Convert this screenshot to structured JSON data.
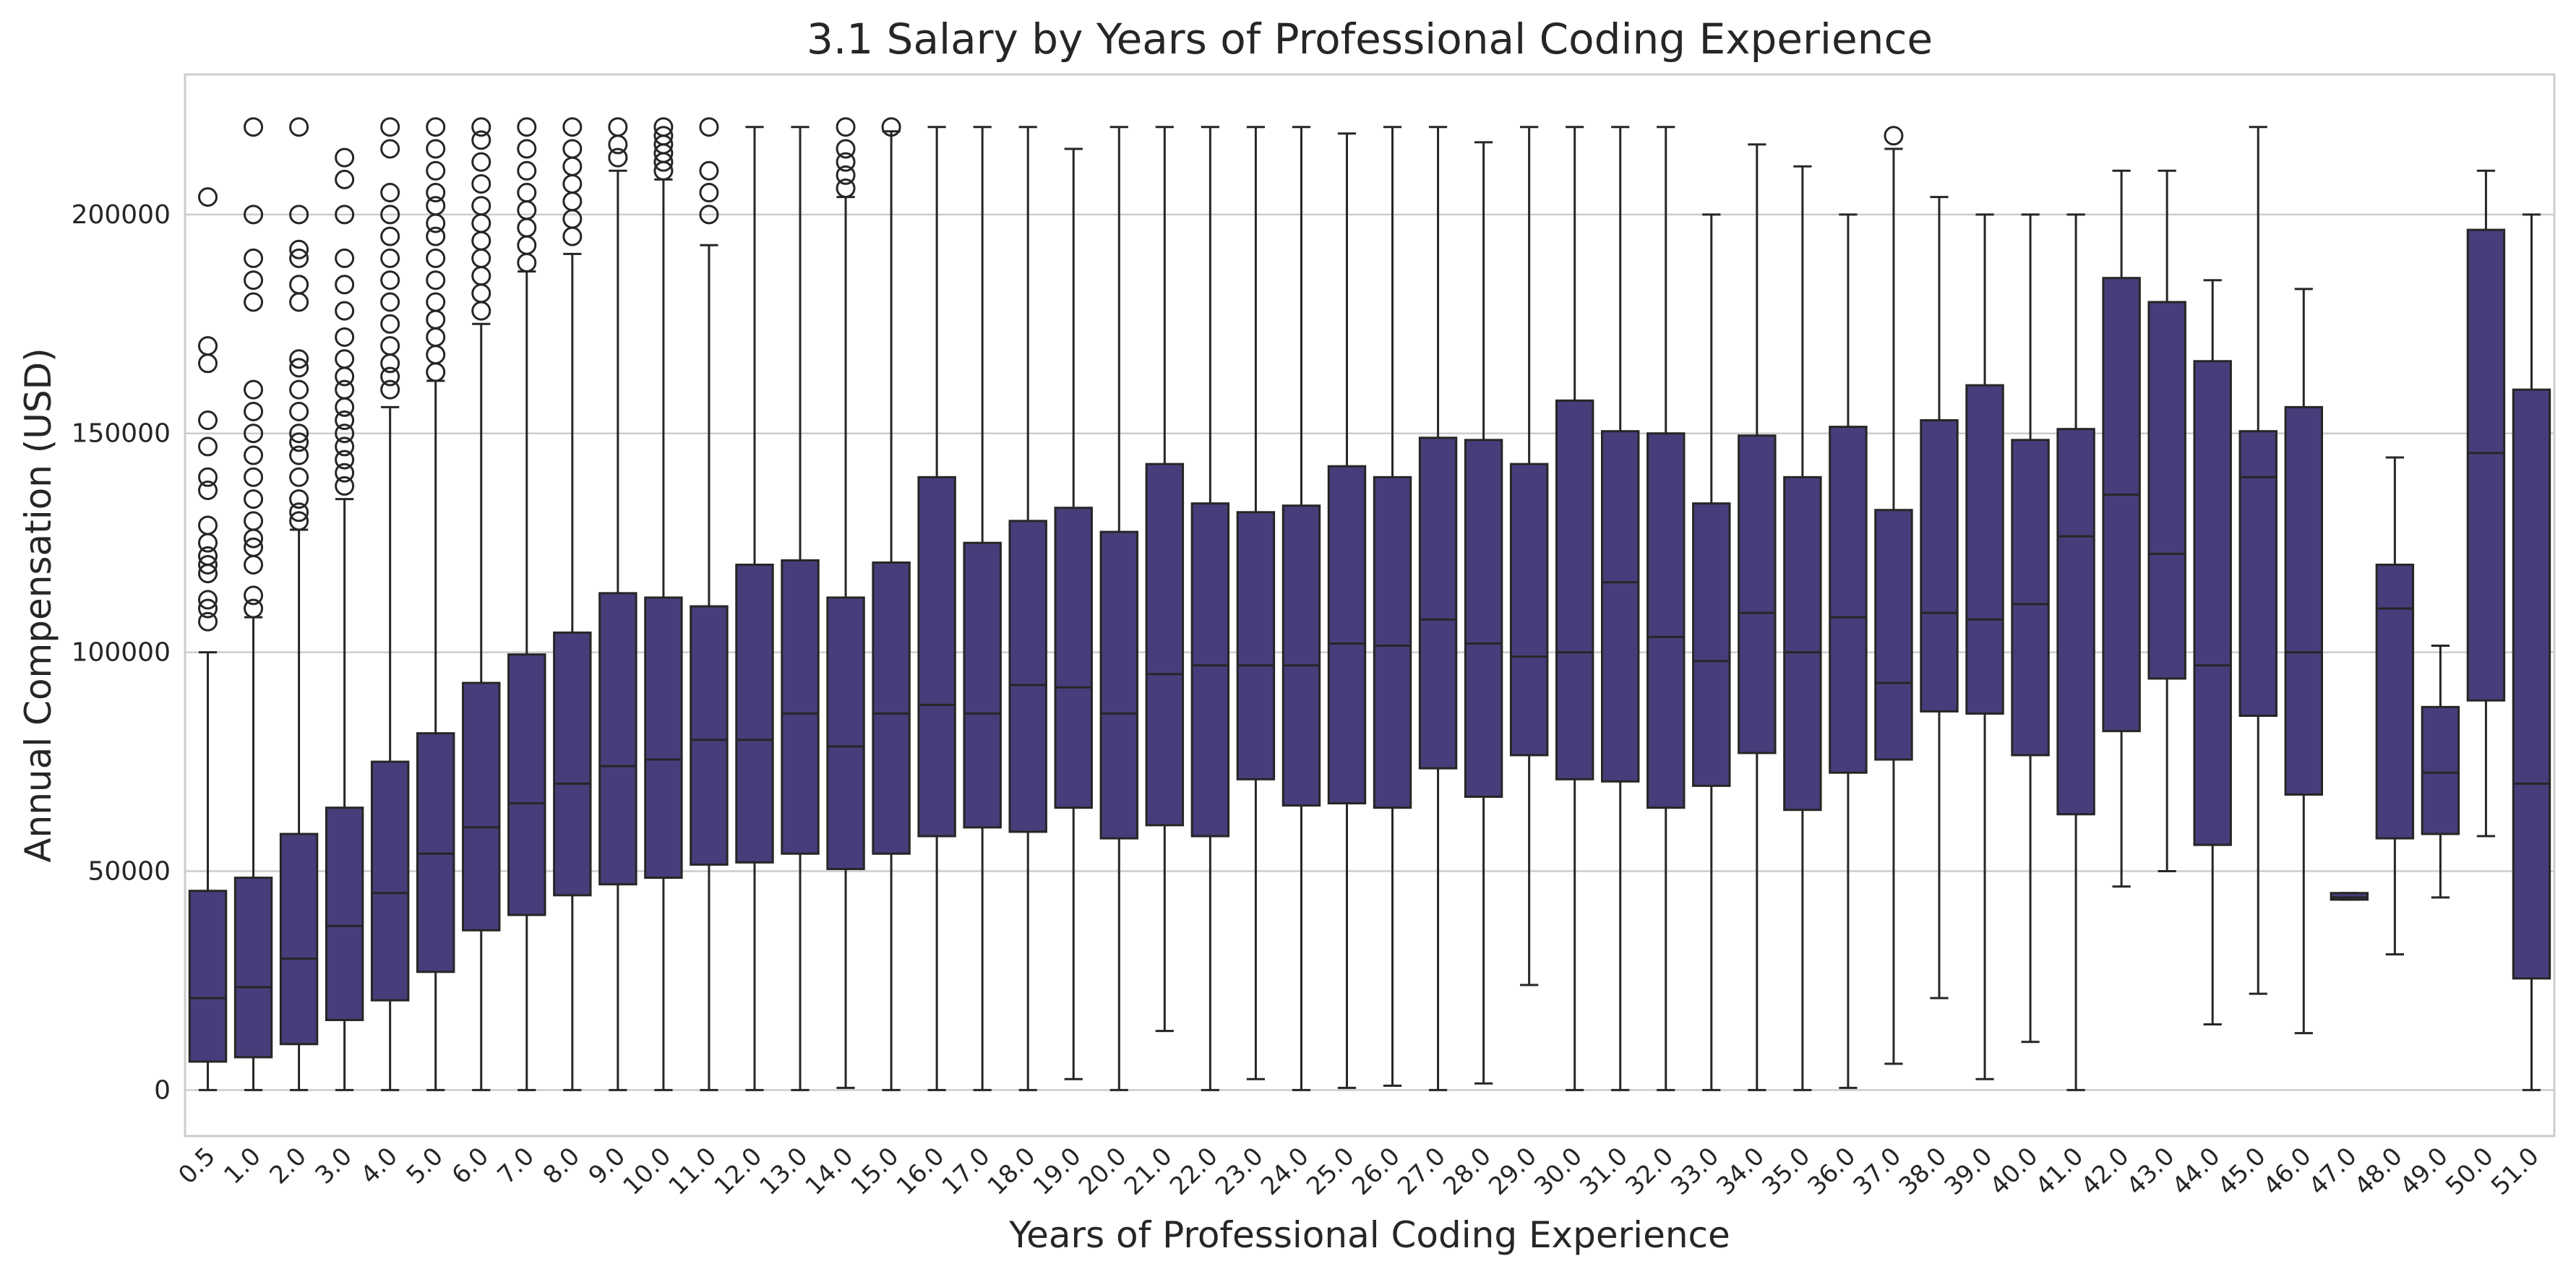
{
  "chart_data": {
    "type": "box",
    "title": "3.1 Salary by Years of Professional Coding Experience",
    "xlabel": "Years of Professional Coding Experience",
    "ylabel": "Annual Compensation (USD)",
    "ylim": [
      -10500,
      232000
    ],
    "yticks": [
      0,
      50000,
      100000,
      150000,
      200000
    ],
    "grid": true,
    "box_color": "#483d7a",
    "line_color": "#262626",
    "categories": [
      "0.5",
      "1.0",
      "2.0",
      "3.0",
      "4.0",
      "5.0",
      "6.0",
      "7.0",
      "8.0",
      "9.0",
      "10.0",
      "11.0",
      "12.0",
      "13.0",
      "14.0",
      "15.0",
      "16.0",
      "17.0",
      "18.0",
      "19.0",
      "20.0",
      "21.0",
      "22.0",
      "23.0",
      "24.0",
      "25.0",
      "26.0",
      "27.0",
      "28.0",
      "29.0",
      "30.0",
      "31.0",
      "32.0",
      "33.0",
      "34.0",
      "35.0",
      "36.0",
      "37.0",
      "38.0",
      "39.0",
      "40.0",
      "41.0",
      "42.0",
      "43.0",
      "44.0",
      "45.0",
      "46.0",
      "47.0",
      "48.0",
      "49.0",
      "50.0",
      "51.0"
    ],
    "boxes": [
      {
        "category": "0.5",
        "whisker_low": 0,
        "q1": 6500,
        "median": 21000,
        "q3": 45500,
        "whisker_high": 100000,
        "outliers": [
          107000,
          110000,
          112000,
          118000,
          120000,
          122000,
          125000,
          129000,
          137000,
          140000,
          147000,
          153000,
          166000,
          170000,
          204000
        ]
      },
      {
        "category": "1.0",
        "whisker_low": 0,
        "q1": 7500,
        "median": 23500,
        "q3": 48500,
        "whisker_high": 108000,
        "outliers": [
          110000,
          113000,
          120000,
          124000,
          126000,
          130000,
          135000,
          140000,
          145000,
          150000,
          155000,
          160000,
          180000,
          185000,
          190000,
          200000,
          220000
        ]
      },
      {
        "category": "2.0",
        "whisker_low": 0,
        "q1": 10500,
        "median": 30000,
        "q3": 58500,
        "whisker_high": 128000,
        "outliers": [
          130000,
          132000,
          135000,
          140000,
          145000,
          148000,
          150000,
          155000,
          160000,
          165000,
          167000,
          180000,
          184000,
          190000,
          192000,
          200000,
          220000
        ]
      },
      {
        "category": "3.0",
        "whisker_low": 0,
        "q1": 16000,
        "median": 37500,
        "q3": 64500,
        "whisker_high": 135000,
        "outliers": [
          138000,
          141000,
          144000,
          147000,
          150000,
          153000,
          156000,
          160000,
          163000,
          167000,
          172000,
          178000,
          184000,
          190000,
          200000,
          208000,
          213000
        ]
      },
      {
        "category": "4.0",
        "whisker_low": 0,
        "q1": 20500,
        "median": 45000,
        "q3": 75000,
        "whisker_high": 156000,
        "outliers": [
          160000,
          163000,
          166000,
          170000,
          175000,
          180000,
          185000,
          190000,
          195000,
          200000,
          205000,
          215000,
          220000
        ]
      },
      {
        "category": "5.0",
        "whisker_low": 0,
        "q1": 27000,
        "median": 54000,
        "q3": 81500,
        "whisker_high": 162000,
        "outliers": [
          164000,
          168000,
          172000,
          176000,
          180000,
          185000,
          190000,
          195000,
          198000,
          202000,
          205000,
          210000,
          215000,
          220000
        ]
      },
      {
        "category": "6.0",
        "whisker_low": 0,
        "q1": 36500,
        "median": 60000,
        "q3": 93000,
        "whisker_high": 175000,
        "outliers": [
          178000,
          182000,
          186000,
          190000,
          194000,
          198000,
          202000,
          207000,
          212000,
          217000,
          220000
        ]
      },
      {
        "category": "7.0",
        "whisker_low": 0,
        "q1": 40000,
        "median": 65500,
        "q3": 99500,
        "whisker_high": 187000,
        "outliers": [
          189000,
          193000,
          197000,
          201000,
          205000,
          210000,
          215000,
          220000
        ]
      },
      {
        "category": "8.0",
        "whisker_low": 0,
        "q1": 44500,
        "median": 70000,
        "q3": 104500,
        "whisker_high": 191000,
        "outliers": [
          195000,
          199000,
          203000,
          207000,
          211000,
          215000,
          220000
        ]
      },
      {
        "category": "9.0",
        "whisker_low": 0,
        "q1": 47000,
        "median": 74000,
        "q3": 113500,
        "whisker_high": 210000,
        "outliers": [
          213000,
          216000,
          220000
        ]
      },
      {
        "category": "10.0",
        "whisker_low": 0,
        "q1": 48500,
        "median": 75500,
        "q3": 112500,
        "whisker_high": 208000,
        "outliers": [
          210000,
          212000,
          214000,
          216000,
          218000,
          220000
        ]
      },
      {
        "category": "11.0",
        "whisker_low": 0,
        "q1": 51500,
        "median": 80000,
        "q3": 110500,
        "whisker_high": 193000,
        "outliers": [
          200000,
          205000,
          210000,
          220000
        ]
      },
      {
        "category": "12.0",
        "whisker_low": 0,
        "q1": 52000,
        "median": 80000,
        "q3": 120000,
        "whisker_high": 220000,
        "outliers": []
      },
      {
        "category": "13.0",
        "whisker_low": 0,
        "q1": 54000,
        "median": 86000,
        "q3": 121000,
        "whisker_high": 220000,
        "outliers": []
      },
      {
        "category": "14.0",
        "whisker_low": 500,
        "q1": 50500,
        "median": 78500,
        "q3": 112500,
        "whisker_high": 204000,
        "outliers": [
          206000,
          209000,
          212000,
          215000,
          220000
        ]
      },
      {
        "category": "15.0",
        "whisker_low": 0,
        "q1": 54000,
        "median": 86000,
        "q3": 120500,
        "whisker_high": 219000,
        "outliers": [
          220000
        ]
      },
      {
        "category": "16.0",
        "whisker_low": 0,
        "q1": 58000,
        "median": 88000,
        "q3": 140000,
        "whisker_high": 220000,
        "outliers": []
      },
      {
        "category": "17.0",
        "whisker_low": 0,
        "q1": 60000,
        "median": 86000,
        "q3": 125000,
        "whisker_high": 220000,
        "outliers": []
      },
      {
        "category": "18.0",
        "whisker_low": 0,
        "q1": 59000,
        "median": 92500,
        "q3": 130000,
        "whisker_high": 220000,
        "outliers": []
      },
      {
        "category": "19.0",
        "whisker_low": 2500,
        "q1": 64500,
        "median": 92000,
        "q3": 133000,
        "whisker_high": 215000,
        "outliers": []
      },
      {
        "category": "20.0",
        "whisker_low": 0,
        "q1": 57500,
        "median": 86000,
        "q3": 127500,
        "whisker_high": 220000,
        "outliers": []
      },
      {
        "category": "21.0",
        "whisker_low": 13500,
        "q1": 60500,
        "median": 95000,
        "q3": 143000,
        "whisker_high": 220000,
        "outliers": []
      },
      {
        "category": "22.0",
        "whisker_low": 0,
        "q1": 58000,
        "median": 97000,
        "q3": 134000,
        "whisker_high": 220000,
        "outliers": []
      },
      {
        "category": "23.0",
        "whisker_low": 2500,
        "q1": 71000,
        "median": 97000,
        "q3": 132000,
        "whisker_high": 220000,
        "outliers": []
      },
      {
        "category": "24.0",
        "whisker_low": 0,
        "q1": 65000,
        "median": 97000,
        "q3": 133500,
        "whisker_high": 220000,
        "outliers": []
      },
      {
        "category": "25.0",
        "whisker_low": 500,
        "q1": 65500,
        "median": 102000,
        "q3": 142500,
        "whisker_high": 218500,
        "outliers": []
      },
      {
        "category": "26.0",
        "whisker_low": 1000,
        "q1": 64500,
        "median": 101500,
        "q3": 140000,
        "whisker_high": 220000,
        "outliers": []
      },
      {
        "category": "27.0",
        "whisker_low": 0,
        "q1": 73500,
        "median": 107500,
        "q3": 149000,
        "whisker_high": 220000,
        "outliers": []
      },
      {
        "category": "28.0",
        "whisker_low": 1500,
        "q1": 67000,
        "median": 102000,
        "q3": 148500,
        "whisker_high": 216500,
        "outliers": []
      },
      {
        "category": "29.0",
        "whisker_low": 24000,
        "q1": 76500,
        "median": 99000,
        "q3": 143000,
        "whisker_high": 220000,
        "outliers": []
      },
      {
        "category": "30.0",
        "whisker_low": 0,
        "q1": 71000,
        "median": 100000,
        "q3": 157500,
        "whisker_high": 220000,
        "outliers": []
      },
      {
        "category": "31.0",
        "whisker_low": 0,
        "q1": 70500,
        "median": 116000,
        "q3": 150500,
        "whisker_high": 220000,
        "outliers": []
      },
      {
        "category": "32.0",
        "whisker_low": 0,
        "q1": 64500,
        "median": 103500,
        "q3": 150000,
        "whisker_high": 220000,
        "outliers": []
      },
      {
        "category": "33.0",
        "whisker_low": 0,
        "q1": 69500,
        "median": 98000,
        "q3": 134000,
        "whisker_high": 200000,
        "outliers": []
      },
      {
        "category": "34.0",
        "whisker_low": 0,
        "q1": 77000,
        "median": 109000,
        "q3": 149500,
        "whisker_high": 216000,
        "outliers": []
      },
      {
        "category": "35.0",
        "whisker_low": 0,
        "q1": 64000,
        "median": 100000,
        "q3": 140000,
        "whisker_high": 211000,
        "outliers": []
      },
      {
        "category": "36.0",
        "whisker_low": 500,
        "q1": 72500,
        "median": 108000,
        "q3": 151500,
        "whisker_high": 200000,
        "outliers": []
      },
      {
        "category": "37.0",
        "whisker_low": 6000,
        "q1": 75500,
        "median": 93000,
        "q3": 132500,
        "whisker_high": 215000,
        "outliers": [
          218000
        ]
      },
      {
        "category": "38.0",
        "whisker_low": 21000,
        "q1": 86500,
        "median": 109000,
        "q3": 153000,
        "whisker_high": 204000,
        "outliers": []
      },
      {
        "category": "39.0",
        "whisker_low": 2500,
        "q1": 86000,
        "median": 107500,
        "q3": 161000,
        "whisker_high": 200000,
        "outliers": []
      },
      {
        "category": "40.0",
        "whisker_low": 11000,
        "q1": 76500,
        "median": 111000,
        "q3": 148500,
        "whisker_high": 200000,
        "outliers": []
      },
      {
        "category": "41.0",
        "whisker_low": 0,
        "q1": 63000,
        "median": 126500,
        "q3": 151000,
        "whisker_high": 200000,
        "outliers": []
      },
      {
        "category": "42.0",
        "whisker_low": 46500,
        "q1": 82000,
        "median": 136000,
        "q3": 185500,
        "whisker_high": 210000,
        "outliers": []
      },
      {
        "category": "43.0",
        "whisker_low": 50000,
        "q1": 94000,
        "median": 122500,
        "q3": 180000,
        "whisker_high": 210000,
        "outliers": []
      },
      {
        "category": "44.0",
        "whisker_low": 15000,
        "q1": 56000,
        "median": 97000,
        "q3": 166500,
        "whisker_high": 185000,
        "outliers": []
      },
      {
        "category": "45.0",
        "whisker_low": 22000,
        "q1": 85500,
        "median": 140000,
        "q3": 150500,
        "whisker_high": 220000,
        "outliers": []
      },
      {
        "category": "46.0",
        "whisker_low": 13000,
        "q1": 67500,
        "median": 100000,
        "q3": 156000,
        "whisker_high": 183000,
        "outliers": []
      },
      {
        "category": "47.0",
        "whisker_low": 43500,
        "q1": 43500,
        "median": 44000,
        "q3": 45000,
        "whisker_high": 45000,
        "outliers": []
      },
      {
        "category": "48.0",
        "whisker_low": 31000,
        "q1": 57500,
        "median": 110000,
        "q3": 120000,
        "whisker_high": 144500,
        "outliers": []
      },
      {
        "category": "49.0",
        "whisker_low": 44000,
        "q1": 58500,
        "median": 72500,
        "q3": 87500,
        "whisker_high": 101500,
        "outliers": []
      },
      {
        "category": "50.0",
        "whisker_low": 58000,
        "q1": 89000,
        "median": 145500,
        "q3": 196500,
        "whisker_high": 210000,
        "outliers": []
      },
      {
        "category": "51.0",
        "whisker_low": 0,
        "q1": 25500,
        "median": 70000,
        "q3": 160000,
        "whisker_high": 200000,
        "outliers": []
      }
    ]
  }
}
